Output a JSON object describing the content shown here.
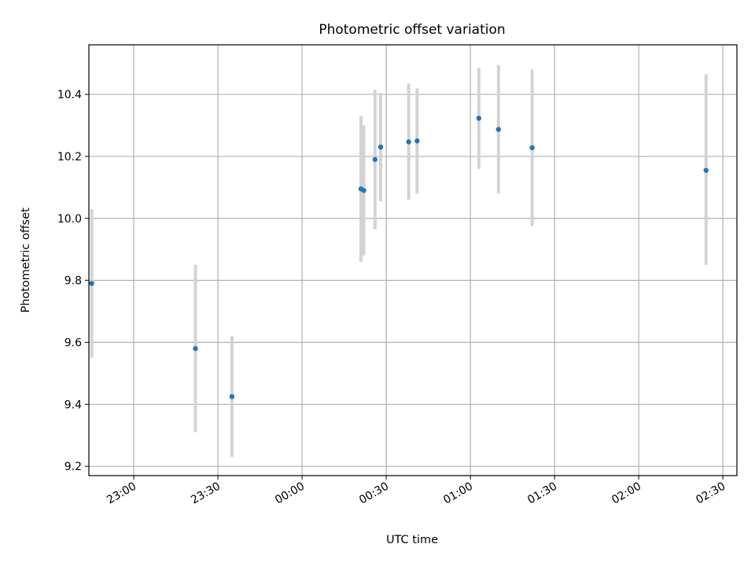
{
  "chart_data": {
    "type": "scatter",
    "title": "Photometric offset variation",
    "xlabel": "UTC time",
    "ylabel": "Photometric offset",
    "xlim": [
      "22:44",
      "02:35"
    ],
    "ylim": [
      9.17,
      10.56
    ],
    "grid": true,
    "x_ticks": [
      "23:00",
      "23:30",
      "00:00",
      "00:30",
      "01:00",
      "01:30",
      "02:00",
      "02:30"
    ],
    "y_ticks": [
      "9.2",
      "9.4",
      "9.6",
      "9.8",
      "10.0",
      "10.2",
      "10.4"
    ],
    "point_color": "#1f77b4",
    "errorbar_color": "#d3d3d3",
    "series": [
      {
        "points": [
          {
            "t": "22:45",
            "y": 9.79,
            "ylo": 9.55,
            "yhi": 10.03
          },
          {
            "t": "23:22",
            "y": 9.58,
            "ylo": 9.31,
            "yhi": 9.85
          },
          {
            "t": "23:35",
            "y": 9.425,
            "ylo": 9.23,
            "yhi": 9.62
          },
          {
            "t": "00:21",
            "y": 10.095,
            "ylo": 9.86,
            "yhi": 10.33
          },
          {
            "t": "00:22",
            "y": 10.09,
            "ylo": 9.88,
            "yhi": 10.3
          },
          {
            "t": "00:26",
            "y": 10.19,
            "ylo": 9.965,
            "yhi": 10.415
          },
          {
            "t": "00:28",
            "y": 10.23,
            "ylo": 10.055,
            "yhi": 10.405
          },
          {
            "t": "00:38",
            "y": 10.247,
            "ylo": 10.06,
            "yhi": 10.435
          },
          {
            "t": "00:41",
            "y": 10.25,
            "ylo": 10.08,
            "yhi": 10.42
          },
          {
            "t": "01:03",
            "y": 10.323,
            "ylo": 10.16,
            "yhi": 10.485
          },
          {
            "t": "01:10",
            "y": 10.287,
            "ylo": 10.08,
            "yhi": 10.495
          },
          {
            "t": "01:22",
            "y": 10.228,
            "ylo": 9.975,
            "yhi": 10.48
          },
          {
            "t": "02:24",
            "y": 10.155,
            "ylo": 9.85,
            "yhi": 10.465
          }
        ]
      }
    ]
  }
}
